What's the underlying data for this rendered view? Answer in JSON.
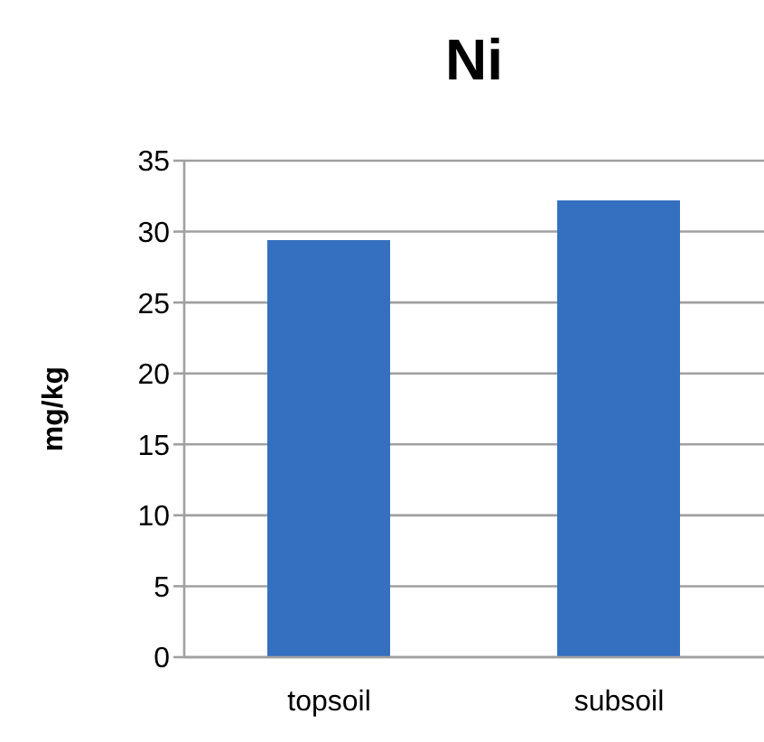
{
  "chart_data": {
    "type": "bar",
    "title": "Ni",
    "ylabel": "mg/kg",
    "categories": [
      "topsoil",
      "subsoil"
    ],
    "series": [
      {
        "color": "#3470bf",
        "values": [
          29.4,
          32.2
        ]
      }
    ],
    "ylim": [
      0,
      35
    ],
    "yticks": [
      0,
      5,
      10,
      15,
      20,
      25,
      30,
      35
    ],
    "grid": "y"
  }
}
